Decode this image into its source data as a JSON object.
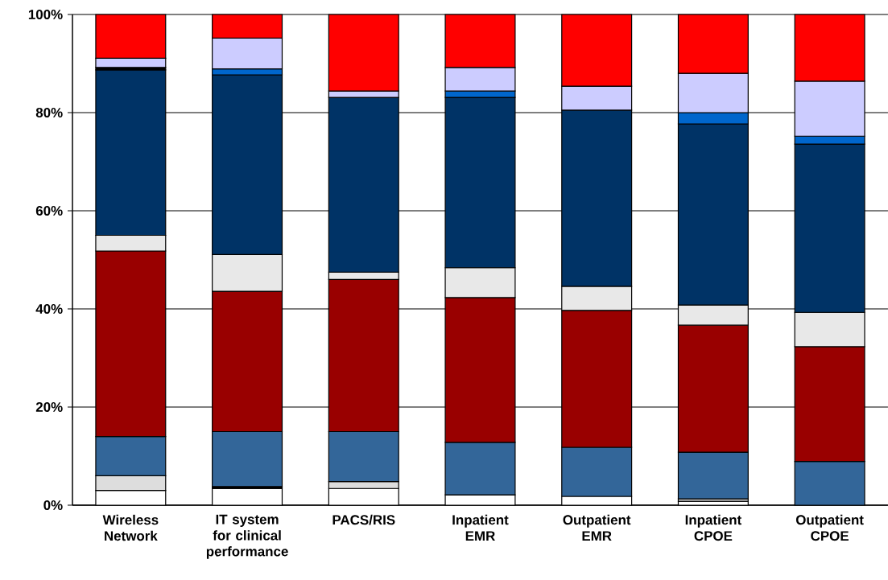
{
  "chart_data": {
    "type": "bar",
    "stacked": true,
    "categories": [
      "Wireless Network",
      "IT system for clinical performance",
      "PACS/RIS",
      "Inpatient EMR",
      "Outpatient EMR",
      "Inpatient CPOE",
      "Outpatient CPOE"
    ],
    "series": [
      {
        "color": "#ffffff",
        "values": [
          3,
          3.4,
          3.4,
          2.1,
          1.8,
          0.8,
          null
        ]
      },
      {
        "color": "#dddddd",
        "values": [
          3,
          null,
          1.4,
          null,
          null,
          0.5,
          null
        ]
      },
      {
        "color": "#000000",
        "values": [
          null,
          0.4,
          null,
          null,
          null,
          null,
          null
        ]
      },
      {
        "color": "#336699",
        "values": [
          8,
          11.2,
          10.2,
          10.7,
          10,
          9.5,
          8.9
        ]
      },
      {
        "color": "#990000",
        "values": [
          37.8,
          28.6,
          31,
          29.5,
          27.9,
          25.9,
          23.4
        ]
      },
      {
        "color": "#e8e8e8",
        "values": [
          3.2,
          7.5,
          1.5,
          6.1,
          4.9,
          4.1,
          7
        ]
      },
      {
        "color": "#003366",
        "values": [
          33.7,
          36.6,
          35.6,
          34.7,
          35.9,
          36.9,
          34.3
        ]
      },
      {
        "color": "#000000",
        "values": [
          0.5,
          null,
          null,
          null,
          null,
          null,
          null
        ]
      },
      {
        "color": "#0066cc",
        "values": [
          null,
          1.2,
          null,
          1.3,
          null,
          2.3,
          1.6
        ]
      },
      {
        "color": "#ccccff",
        "values": [
          1.9,
          6.3,
          1.3,
          4.8,
          4.9,
          8,
          11.2
        ]
      },
      {
        "color": "#ff0000",
        "values": [
          8.9,
          4.8,
          15.6,
          10.8,
          14.6,
          12,
          13.6
        ]
      }
    ],
    "ylim": [
      0,
      100
    ],
    "yticks": [
      {
        "value": 0,
        "label": "0%"
      },
      {
        "value": 20,
        "label": "20%"
      },
      {
        "value": 40,
        "label": "40%"
      },
      {
        "value": 60,
        "label": "60%"
      },
      {
        "value": 80,
        "label": "80%"
      },
      {
        "value": 100,
        "label": "100%"
      }
    ],
    "grid": "y"
  }
}
